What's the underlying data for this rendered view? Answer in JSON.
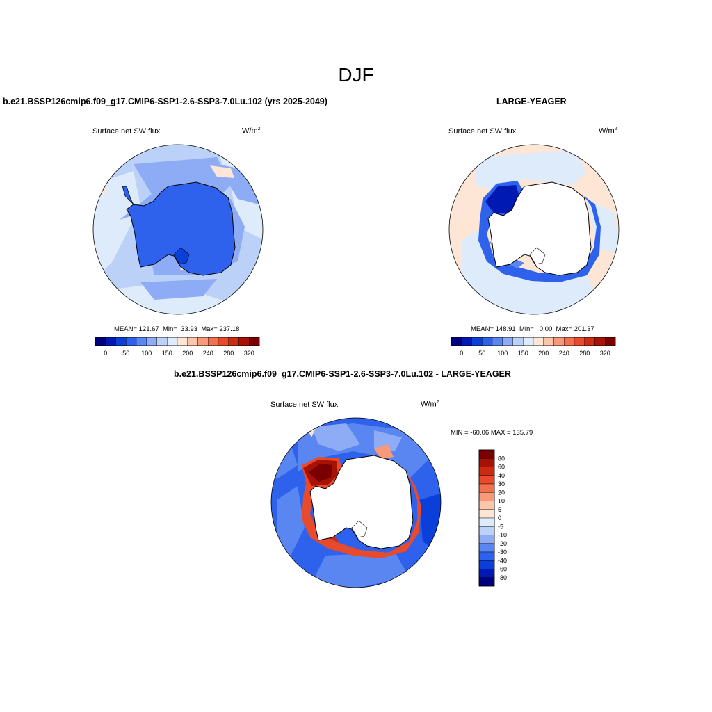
{
  "figure": {
    "title": "DJF"
  },
  "panels": [
    {
      "title": "b.e21.BSSP126cmip6.f09_g17.CMIP6-SSP1-2.6-SSP3-7.0Lu.102 (yrs 2025-2049)",
      "variable": "Surface net SW flux",
      "units_base": "W/m",
      "units_exp": "2",
      "mean_label": "MEAN=",
      "mean_value": "121.67",
      "min_label": "Min=",
      "min_value": "33.93",
      "max_label": "Max=",
      "max_value": "237.18"
    },
    {
      "title": "LARGE-YEAGER",
      "variable": "Surface net SW flux",
      "units_base": "W/m",
      "units_exp": "2",
      "mean_label": "MEAN=",
      "mean_value": "148.91",
      "min_label": "Min=",
      "min_value": "0.00",
      "max_label": "Max=",
      "max_value": "201.37"
    },
    {
      "title": "b.e21.BSSP126cmip6.f09_g17.CMIP6-SSP1-2.6-SSP3-7.0Lu.102 - LARGE-YEAGER",
      "variable": "Surface net SW flux",
      "units_base": "W/m",
      "units_exp": "2",
      "minmax_text": "MIN = -60.06 MAX = 135.79"
    }
  ],
  "colorbars": {
    "abs": {
      "colors": [
        "#00007f",
        "#0019b2",
        "#0a3fd9",
        "#2e62ec",
        "#5a86f2",
        "#8eabf5",
        "#bcd1f8",
        "#deebfb",
        "#fde6d6",
        "#fbc6aa",
        "#f7997a",
        "#f26f4f",
        "#e84a2b",
        "#cd2a12",
        "#a71205",
        "#7a0000"
      ],
      "tick_labels": [
        "0",
        "50",
        "100",
        "150",
        "200",
        "240",
        "280",
        "320"
      ]
    },
    "diff": {
      "colors": [
        "#7a0000",
        "#a71205",
        "#cd2a12",
        "#e84a2b",
        "#f26f4f",
        "#f7997a",
        "#fbc6aa",
        "#fde6d6",
        "#deebfb",
        "#bcd1f8",
        "#8eabf5",
        "#5a86f2",
        "#2e62ec",
        "#0a3fd9",
        "#0019b2",
        "#00007f"
      ],
      "tick_labels": [
        "80",
        "60",
        "40",
        "30",
        "20",
        "10",
        "5",
        "0",
        "-5",
        "-10",
        "-20",
        "-30",
        "-40",
        "-60",
        "-80"
      ]
    }
  },
  "map_colors": {
    "land_fill": "#ffffff",
    "outline": "#000000"
  }
}
